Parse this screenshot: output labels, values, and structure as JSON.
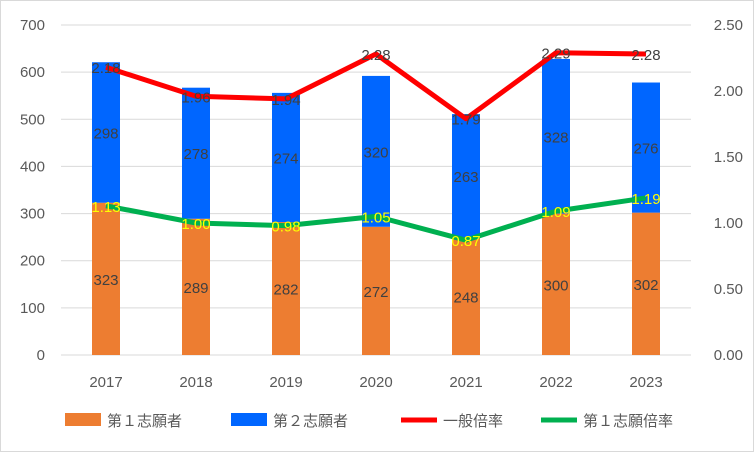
{
  "chart_data": {
    "type": "bar+line",
    "categories": [
      "2017",
      "2018",
      "2019",
      "2020",
      "2021",
      "2022",
      "2023"
    ],
    "series": [
      {
        "name": "第１志願者",
        "type": "stacked-bar",
        "axis": "left",
        "color": "#ED7D31",
        "values": [
          323,
          289,
          282,
          272,
          248,
          300,
          302
        ]
      },
      {
        "name": "第２志願者",
        "type": "stacked-bar",
        "axis": "left",
        "color": "#0066FF",
        "values": [
          298,
          278,
          274,
          320,
          263,
          328,
          276
        ]
      },
      {
        "name": "一般倍率",
        "type": "line",
        "axis": "right",
        "color": "#FF0000",
        "values": [
          2.18,
          1.96,
          1.94,
          2.28,
          1.79,
          2.29,
          2.28
        ]
      },
      {
        "name": "第１志願倍率",
        "type": "line",
        "axis": "right",
        "color": "#00B050",
        "values": [
          1.13,
          1.0,
          0.98,
          1.05,
          0.87,
          1.09,
          1.19
        ]
      }
    ],
    "left_axis": {
      "ylim": [
        0,
        700
      ],
      "ticks": [
        "0",
        "100",
        "200",
        "300",
        "400",
        "500",
        "600",
        "700"
      ]
    },
    "right_axis": {
      "ylim": [
        0,
        2.5
      ],
      "ticks": [
        "0.00",
        "0.50",
        "1.00",
        "1.50",
        "2.00",
        "2.50"
      ]
    },
    "grid": true,
    "legend": "bottom"
  }
}
